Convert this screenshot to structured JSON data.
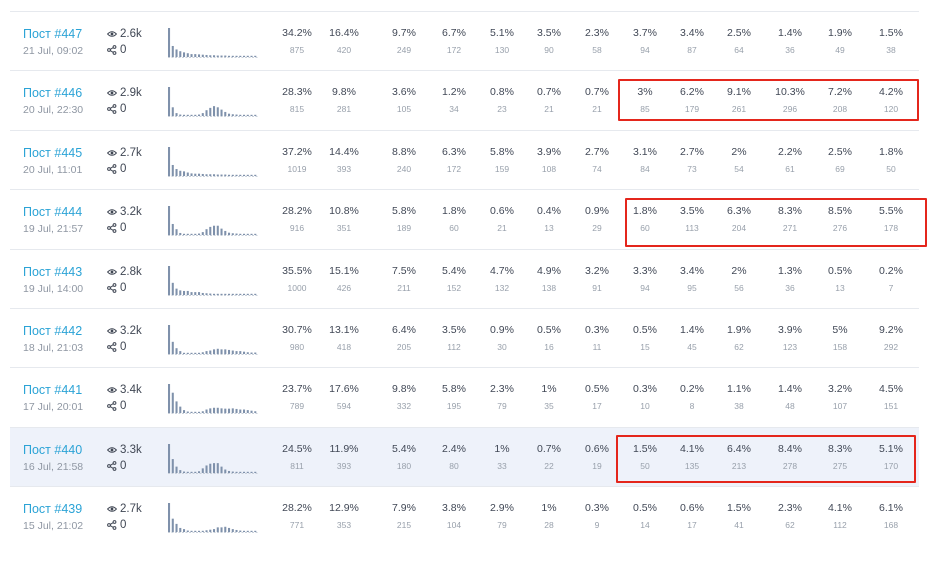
{
  "posts": [
    {
      "title": "Пост #447",
      "date": "21 Jul, 09:02",
      "views": "2.6k",
      "shares": "0",
      "cells": [
        [
          "34.2%",
          "875"
        ],
        [
          "16.4%",
          "420"
        ],
        [
          "9.7%",
          "249"
        ],
        [
          "6.7%",
          "172"
        ],
        [
          "5.1%",
          "130"
        ],
        [
          "3.5%",
          "90"
        ],
        [
          "2.3%",
          "58"
        ],
        [
          "3.7%",
          "94"
        ],
        [
          "3.4%",
          "87"
        ],
        [
          "2.5%",
          "64"
        ],
        [
          "1.4%",
          "36"
        ],
        [
          "1.9%",
          "49"
        ],
        [
          "1.5%",
          "38"
        ]
      ]
    },
    {
      "title": "Пост #446",
      "date": "20 Jul, 22:30",
      "views": "2.9k",
      "shares": "0",
      "cells": [
        [
          "28.3%",
          "815"
        ],
        [
          "9.8%",
          "281"
        ],
        [
          "3.6%",
          "105"
        ],
        [
          "1.2%",
          "34"
        ],
        [
          "0.8%",
          "23"
        ],
        [
          "0.7%",
          "21"
        ],
        [
          "0.7%",
          "21"
        ],
        [
          "3%",
          "85"
        ],
        [
          "6.2%",
          "179"
        ],
        [
          "9.1%",
          "261"
        ],
        [
          "10.3%",
          "296"
        ],
        [
          "7.2%",
          "208"
        ],
        [
          "4.2%",
          "120"
        ]
      ]
    },
    {
      "title": "Пост #445",
      "date": "20 Jul, 11:01",
      "views": "2.7k",
      "shares": "0",
      "cells": [
        [
          "37.2%",
          "1019"
        ],
        [
          "14.4%",
          "393"
        ],
        [
          "8.8%",
          "240"
        ],
        [
          "6.3%",
          "172"
        ],
        [
          "5.8%",
          "159"
        ],
        [
          "3.9%",
          "108"
        ],
        [
          "2.7%",
          "74"
        ],
        [
          "3.1%",
          "84"
        ],
        [
          "2.7%",
          "73"
        ],
        [
          "2%",
          "54"
        ],
        [
          "2.2%",
          "61"
        ],
        [
          "2.5%",
          "69"
        ],
        [
          "1.8%",
          "50"
        ]
      ]
    },
    {
      "title": "Пост #444",
      "date": "19 Jul, 21:57",
      "views": "3.2k",
      "shares": "0",
      "cells": [
        [
          "28.2%",
          "916"
        ],
        [
          "10.8%",
          "351"
        ],
        [
          "5.8%",
          "189"
        ],
        [
          "1.8%",
          "60"
        ],
        [
          "0.6%",
          "21"
        ],
        [
          "0.4%",
          "13"
        ],
        [
          "0.9%",
          "29"
        ],
        [
          "1.8%",
          "60"
        ],
        [
          "3.5%",
          "113"
        ],
        [
          "6.3%",
          "204"
        ],
        [
          "8.3%",
          "271"
        ],
        [
          "8.5%",
          "276"
        ],
        [
          "5.5%",
          "178"
        ]
      ]
    },
    {
      "title": "Пост #443",
      "date": "19 Jul, 14:00",
      "views": "2.8k",
      "shares": "0",
      "cells": [
        [
          "35.5%",
          "1000"
        ],
        [
          "15.1%",
          "426"
        ],
        [
          "7.5%",
          "211"
        ],
        [
          "5.4%",
          "152"
        ],
        [
          "4.7%",
          "132"
        ],
        [
          "4.9%",
          "138"
        ],
        [
          "3.2%",
          "91"
        ],
        [
          "3.3%",
          "94"
        ],
        [
          "3.4%",
          "95"
        ],
        [
          "2%",
          "56"
        ],
        [
          "1.3%",
          "36"
        ],
        [
          "0.5%",
          "13"
        ],
        [
          "0.2%",
          "7"
        ]
      ]
    },
    {
      "title": "Пост #442",
      "date": "18 Jul, 21:03",
      "views": "3.2k",
      "shares": "0",
      "cells": [
        [
          "30.7%",
          "980"
        ],
        [
          "13.1%",
          "418"
        ],
        [
          "6.4%",
          "205"
        ],
        [
          "3.5%",
          "112"
        ],
        [
          "0.9%",
          "30"
        ],
        [
          "0.5%",
          "16"
        ],
        [
          "0.3%",
          "11"
        ],
        [
          "0.5%",
          "15"
        ],
        [
          "1.4%",
          "45"
        ],
        [
          "1.9%",
          "62"
        ],
        [
          "3.9%",
          "123"
        ],
        [
          "5%",
          "158"
        ],
        [
          "9.2%",
          "292"
        ]
      ]
    },
    {
      "title": "Пост #441",
      "date": "17 Jul, 20:01",
      "views": "3.4k",
      "shares": "0",
      "cells": [
        [
          "23.7%",
          "789"
        ],
        [
          "17.6%",
          "594"
        ],
        [
          "9.8%",
          "332"
        ],
        [
          "5.8%",
          "195"
        ],
        [
          "2.3%",
          "79"
        ],
        [
          "1%",
          "35"
        ],
        [
          "0.5%",
          "17"
        ],
        [
          "0.3%",
          "10"
        ],
        [
          "0.2%",
          "8"
        ],
        [
          "1.1%",
          "38"
        ],
        [
          "1.4%",
          "48"
        ],
        [
          "3.2%",
          "107"
        ],
        [
          "4.5%",
          "151"
        ]
      ]
    },
    {
      "title": "Пост #440",
      "date": "16 Jul, 21:58",
      "views": "3.3k",
      "shares": "0",
      "cells": [
        [
          "24.5%",
          "811"
        ],
        [
          "11.9%",
          "393"
        ],
        [
          "5.4%",
          "180"
        ],
        [
          "2.4%",
          "80"
        ],
        [
          "1%",
          "33"
        ],
        [
          "0.7%",
          "22"
        ],
        [
          "0.6%",
          "19"
        ],
        [
          "1.5%",
          "50"
        ],
        [
          "4.1%",
          "135"
        ],
        [
          "6.4%",
          "213"
        ],
        [
          "8.4%",
          "278"
        ],
        [
          "8.3%",
          "275"
        ],
        [
          "5.1%",
          "170"
        ]
      ]
    },
    {
      "title": "Пост #439",
      "date": "15 Jul, 21:02",
      "views": "2.7k",
      "shares": "0",
      "cells": [
        [
          "28.2%",
          "771"
        ],
        [
          "12.9%",
          "353"
        ],
        [
          "7.9%",
          "215"
        ],
        [
          "3.8%",
          "104"
        ],
        [
          "2.9%",
          "79"
        ],
        [
          "1%",
          "28"
        ],
        [
          "0.3%",
          "9"
        ],
        [
          "0.5%",
          "14"
        ],
        [
          "0.6%",
          "17"
        ],
        [
          "1.5%",
          "41"
        ],
        [
          "2.3%",
          "62"
        ],
        [
          "4.1%",
          "112"
        ],
        [
          "6.1%",
          "168"
        ]
      ]
    }
  ],
  "sparklines": [
    [
      1.0,
      0.38,
      0.26,
      0.2,
      0.16,
      0.13,
      0.1,
      0.1,
      0.09,
      0.08,
      0.07,
      0.06,
      0.06,
      0.05,
      0.05,
      0.05,
      0.04,
      0.04,
      0.04,
      0.04,
      0.04,
      0.04,
      0.04,
      0.04
    ],
    [
      1.0,
      0.3,
      0.1,
      0.05,
      0.04,
      0.04,
      0.04,
      0.04,
      0.05,
      0.1,
      0.2,
      0.28,
      0.34,
      0.3,
      0.22,
      0.14,
      0.08,
      0.06,
      0.05,
      0.04,
      0.04,
      0.04,
      0.04,
      0.04
    ],
    [
      1.0,
      0.38,
      0.24,
      0.18,
      0.16,
      0.12,
      0.09,
      0.08,
      0.08,
      0.07,
      0.06,
      0.06,
      0.06,
      0.05,
      0.05,
      0.05,
      0.04,
      0.04,
      0.04,
      0.04,
      0.04,
      0.04,
      0.04,
      0.04
    ],
    [
      1.0,
      0.38,
      0.2,
      0.07,
      0.04,
      0.04,
      0.04,
      0.04,
      0.05,
      0.1,
      0.2,
      0.28,
      0.32,
      0.32,
      0.22,
      0.14,
      0.08,
      0.06,
      0.05,
      0.04,
      0.04,
      0.04,
      0.04,
      0.04
    ],
    [
      1.0,
      0.42,
      0.22,
      0.16,
      0.14,
      0.14,
      0.1,
      0.1,
      0.1,
      0.07,
      0.06,
      0.05,
      0.04,
      0.04,
      0.04,
      0.04,
      0.04,
      0.04,
      0.04,
      0.04,
      0.04,
      0.04,
      0.04,
      0.04
    ],
    [
      1.0,
      0.42,
      0.2,
      0.1,
      0.04,
      0.04,
      0.04,
      0.04,
      0.04,
      0.06,
      0.1,
      0.12,
      0.16,
      0.18,
      0.16,
      0.16,
      0.14,
      0.12,
      0.1,
      0.1,
      0.08,
      0.06,
      0.05,
      0.05
    ],
    [
      1.0,
      0.7,
      0.4,
      0.22,
      0.1,
      0.05,
      0.04,
      0.04,
      0.04,
      0.06,
      0.12,
      0.16,
      0.18,
      0.18,
      0.16,
      0.15,
      0.15,
      0.16,
      0.14,
      0.12,
      0.12,
      0.1,
      0.08,
      0.06
    ],
    [
      1.0,
      0.48,
      0.22,
      0.1,
      0.05,
      0.04,
      0.04,
      0.04,
      0.06,
      0.16,
      0.26,
      0.32,
      0.34,
      0.34,
      0.22,
      0.12,
      0.07,
      0.05,
      0.04,
      0.04,
      0.04,
      0.04,
      0.04,
      0.04
    ],
    [
      1.0,
      0.46,
      0.28,
      0.14,
      0.1,
      0.05,
      0.04,
      0.04,
      0.04,
      0.04,
      0.06,
      0.08,
      0.1,
      0.16,
      0.16,
      0.18,
      0.14,
      0.1,
      0.07,
      0.05,
      0.04,
      0.04,
      0.04,
      0.04
    ]
  ],
  "highlighted_row": 7,
  "colors": {
    "link": "#2ba3d6",
    "accent_box": "#e4261c",
    "bar": "#7f91ab",
    "row_highlight": "#eef2fa"
  },
  "icons": {
    "views": "eye-icon",
    "shares": "share-icon"
  }
}
